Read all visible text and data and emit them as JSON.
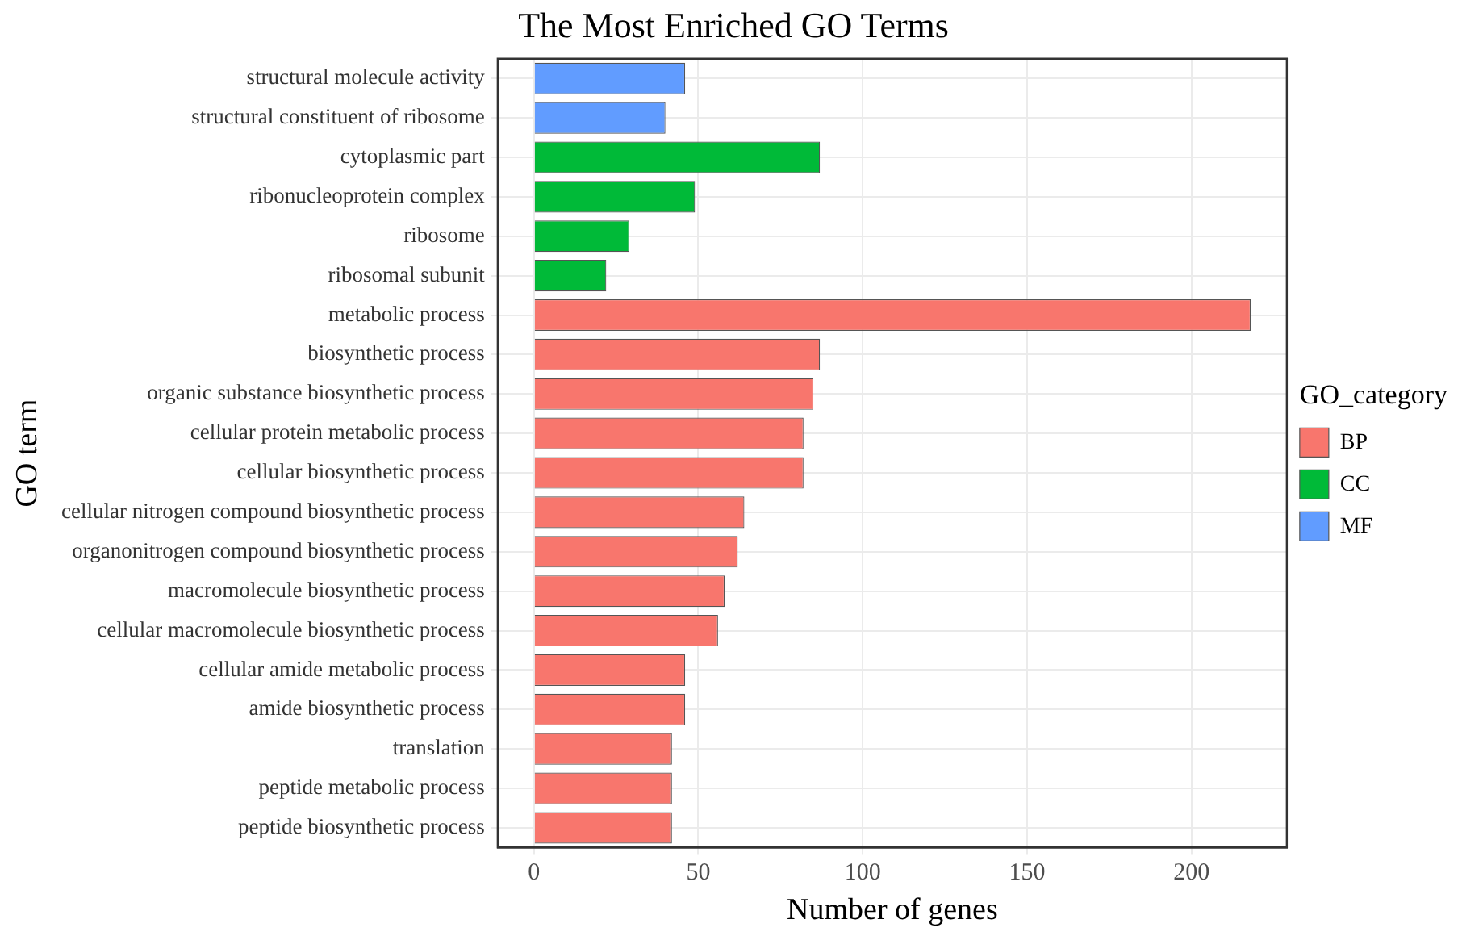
{
  "chart_data": {
    "type": "bar",
    "orientation": "horizontal",
    "stacked": true,
    "title": "The Most Enriched GO Terms",
    "xlabel": "Number of genes",
    "ylabel": "GO term",
    "legend_title": "GO_category",
    "legend": "right",
    "grid": true,
    "categories": [
      "structural molecule activity",
      "structural constituent of ribosome",
      "cytoplasmic part",
      "ribonucleoprotein complex",
      "ribosome",
      "ribosomal subunit",
      "metabolic process",
      "biosynthetic process",
      "organic substance biosynthetic process",
      "cellular protein metabolic process",
      "cellular biosynthetic process",
      "cellular nitrogen compound biosynthetic process",
      "organonitrogen compound biosynthetic process",
      "macromolecule biosynthetic process",
      "cellular macromolecule biosynthetic process",
      "cellular amide metabolic process",
      "amide biosynthetic process",
      "translation",
      "peptide metabolic process",
      "peptide biosynthetic process"
    ],
    "series": [
      {
        "name": "BP",
        "color": "#f8766d",
        "values": [
          null,
          null,
          null,
          null,
          null,
          null,
          218,
          87,
          85,
          82,
          82,
          64,
          62,
          58,
          56,
          46,
          46,
          42,
          42,
          42
        ]
      },
      {
        "name": "CC",
        "color": "#00ba38",
        "values": [
          null,
          null,
          87,
          49,
          29,
          22,
          null,
          null,
          null,
          null,
          null,
          null,
          null,
          null,
          null,
          null,
          null,
          null,
          null,
          null
        ]
      },
      {
        "name": "MF",
        "color": "#619cff",
        "values": [
          46,
          40,
          null,
          null,
          null,
          null,
          null,
          null,
          null,
          null,
          null,
          null,
          null,
          null,
          null,
          null,
          null,
          null,
          null,
          null
        ]
      }
    ],
    "xlim": [
      -11,
      229
    ],
    "xticks": [
      0,
      50,
      100,
      150,
      200
    ]
  }
}
